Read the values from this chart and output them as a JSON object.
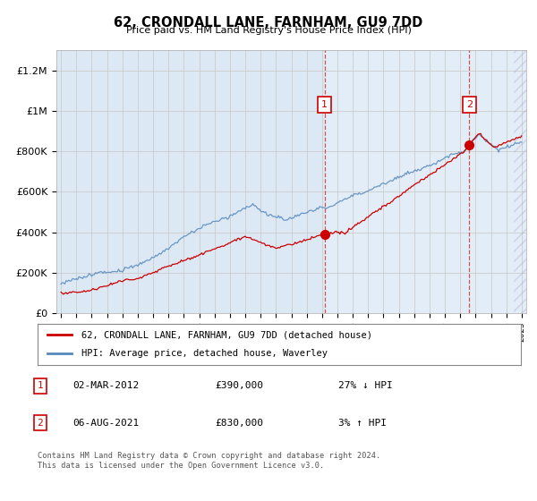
{
  "title": "62, CRONDALL LANE, FARNHAM, GU9 7DD",
  "subtitle": "Price paid vs. HM Land Registry's House Price Index (HPI)",
  "plot_bg_color": "#dce9f5",
  "plot_bg_color_right": "#e8f0f8",
  "ylim": [
    0,
    1300000
  ],
  "yticks": [
    0,
    200000,
    400000,
    600000,
    800000,
    1000000,
    1200000
  ],
  "ytick_labels": [
    "£0",
    "£200K",
    "£400K",
    "£600K",
    "£800K",
    "£1M",
    "£1.2M"
  ],
  "sale1_x": 2012.17,
  "sale1_y": 390000,
  "sale1_label": "1",
  "sale2_x": 2021.59,
  "sale2_y": 830000,
  "sale2_label": "2",
  "vline1_x": 2012.17,
  "vline2_x": 2021.59,
  "xmin": 1994.7,
  "xmax": 2025.3,
  "legend_entries": [
    "62, CRONDALL LANE, FARNHAM, GU9 7DD (detached house)",
    "HPI: Average price, detached house, Waverley"
  ],
  "table_entries": [
    {
      "num": "1",
      "date": "02-MAR-2012",
      "price": "£390,000",
      "hpi": "27% ↓ HPI"
    },
    {
      "num": "2",
      "date": "06-AUG-2021",
      "price": "£830,000",
      "hpi": "3% ↑ HPI"
    }
  ],
  "footer": "Contains HM Land Registry data © Crown copyright and database right 2024.\nThis data is licensed under the Open Government Licence v3.0.",
  "red_line_color": "#cc0000",
  "blue_line_color": "#5588bb"
}
